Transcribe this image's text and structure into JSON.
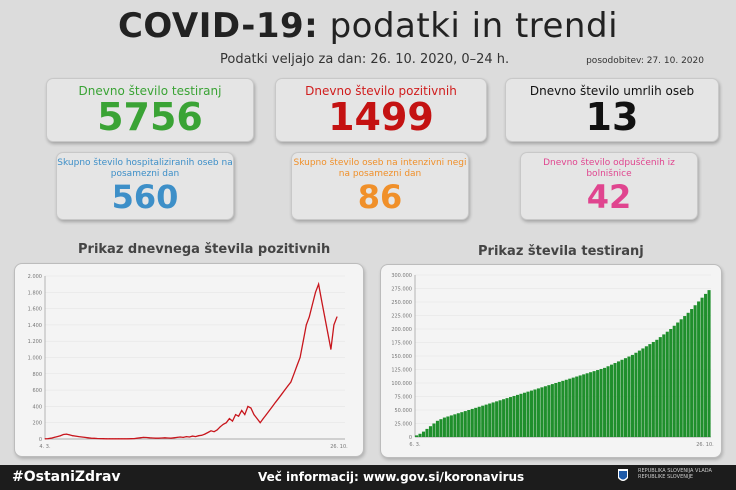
{
  "header": {
    "title_bold": "COVID-19:",
    "title_rest": "podatki in trendi",
    "subtitle": "Podatki veljajo za dan: 26. 10. 2020, 0–24 h.",
    "updated": "posodobitev: 27. 10. 2020"
  },
  "cards": [
    {
      "label": "Dnevno število testiranj",
      "value": "5756",
      "label_color": "#3aa335",
      "value_color": "#3aa335"
    },
    {
      "label": "Dnevno število pozitivnih",
      "value": "1499",
      "label_color": "#d01d1d",
      "value_color": "#c41212"
    },
    {
      "label": "Dnevno število umrlih oseb",
      "value": "13",
      "label_color": "#111111",
      "value_color": "#111111"
    },
    {
      "label": "Skupno število hospitaliziranih oseb na posamezni dan",
      "value": "560",
      "label_color": "#3d8fc8",
      "value_color": "#3d8fc8"
    },
    {
      "label": "Skupno število oseb na intenzivni negi na posamezni dan",
      "value": "86",
      "label_color": "#f0902a",
      "value_color": "#f0902a"
    },
    {
      "label": "Dnevno število odpuščenih iz bolnišnice",
      "value": "42",
      "label_color": "#e0458f",
      "value_color": "#e0458f"
    }
  ],
  "charts": {
    "positive_title": "Prikaz dnevnega števila pozitivnih",
    "tests_title": "Prikaz števila testiranj"
  },
  "footer": {
    "hashtag": "#OstaniZdrav",
    "info": "Več informacij: www.gov.si/koronavirus",
    "gov_text": "REPUBLIKA SLOVENIJA VLADA REPUBLIKE SLOVENIJE"
  },
  "colors": {
    "positive_line": "#c8161d",
    "tests_bar": "#1f8f2c"
  },
  "chart_data": [
    {
      "type": "line",
      "title": "Prikaz dnevnega števila pozitivnih",
      "ylim": [
        0,
        2000
      ],
      "yticks": [
        0,
        200,
        400,
        600,
        800,
        1000,
        1200,
        1400,
        1600,
        1800,
        2000
      ],
      "x_start_label": "4. 3.",
      "x_end_label": "26. 10.",
      "series": [
        {
          "values": [
            2,
            5,
            10,
            20,
            30,
            40,
            55,
            60,
            50,
            40,
            35,
            30,
            25,
            20,
            15,
            10,
            8,
            6,
            5,
            4,
            3,
            3,
            2,
            2,
            3,
            2,
            2,
            3,
            4,
            5,
            10,
            15,
            20,
            18,
            15,
            12,
            10,
            10,
            12,
            15,
            12,
            10,
            15,
            20,
            25,
            20,
            30,
            25,
            35,
            30,
            40,
            45,
            60,
            80,
            100,
            90,
            110,
            150,
            180,
            200,
            250,
            220,
            300,
            280,
            350,
            300,
            400,
            380,
            300,
            250,
            200,
            250,
            300,
            350,
            400,
            450,
            500,
            550,
            600,
            650,
            700,
            800,
            900,
            1000,
            1200,
            1400,
            1500,
            1650,
            1800,
            1900,
            1700,
            1500,
            1300,
            1100,
            1400,
            1499
          ]
        }
      ]
    },
    {
      "type": "bar",
      "title": "Prikaz števila testiranj",
      "ylim": [
        0,
        300000
      ],
      "yticks": [
        0,
        25000,
        50000,
        75000,
        100000,
        125000,
        150000,
        175000,
        200000,
        225000,
        250000,
        275000,
        300000
      ],
      "x_start_label": "6. 3.",
      "x_end_label": "26. 10.",
      "series": [
        {
          "values": [
            3000,
            6000,
            10000,
            15000,
            20000,
            25000,
            30000,
            33000,
            36000,
            38000,
            40000,
            42000,
            44000,
            46000,
            48000,
            50000,
            52000,
            54000,
            56000,
            58000,
            60000,
            62000,
            64000,
            66000,
            68000,
            70000,
            72000,
            74000,
            76000,
            78000,
            80000,
            82000,
            84000,
            86000,
            88000,
            90000,
            92000,
            94000,
            96000,
            98000,
            100000,
            102000,
            104000,
            106000,
            108000,
            110000,
            112000,
            114000,
            116000,
            118000,
            120000,
            122000,
            124000,
            126000,
            128000,
            131000,
            134000,
            137000,
            140000,
            143000,
            146000,
            149000,
            152000,
            156000,
            160000,
            164000,
            168000,
            172000,
            176000,
            180000,
            185000,
            190000,
            195000,
            200000,
            206000,
            212000,
            218000,
            224000,
            230000,
            237000,
            244000,
            251000,
            258000,
            265000,
            272000
          ]
        }
      ]
    }
  ]
}
